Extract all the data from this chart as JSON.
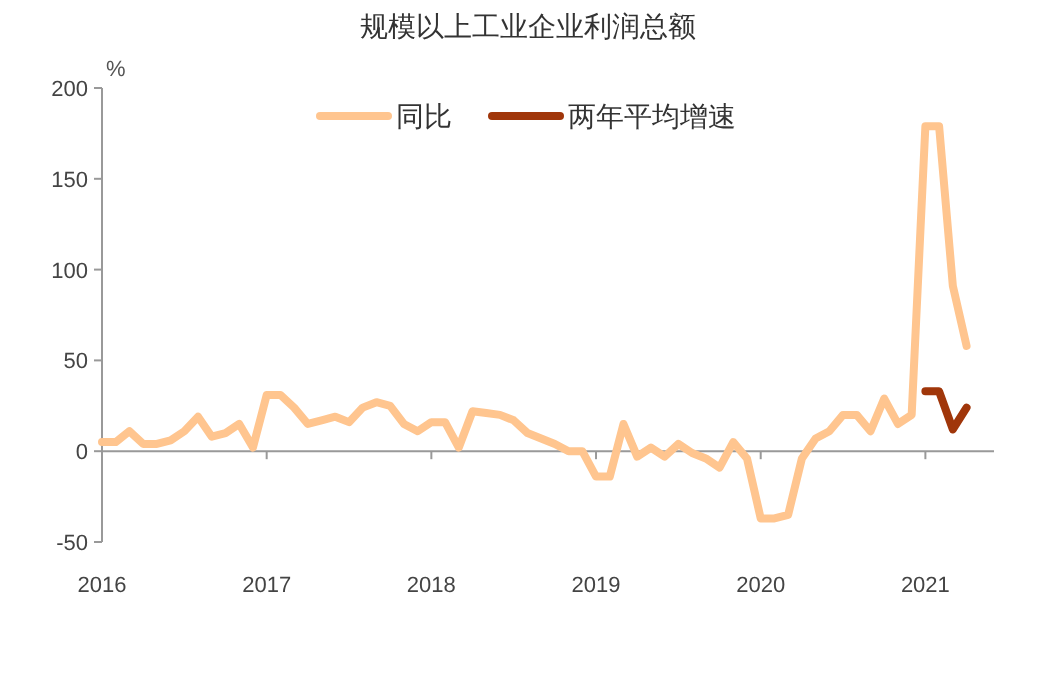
{
  "chart_data": {
    "type": "line",
    "title": "规模以上工业企业利润总额",
    "ylabel": "%",
    "xlim": [
      "2016",
      "2021-06"
    ],
    "xticks": [
      "2016",
      "2017",
      "2018",
      "2019",
      "2020",
      "2021"
    ],
    "ylim": [
      -50,
      200
    ],
    "yticks": [
      -50,
      0,
      50,
      100,
      150,
      200
    ],
    "legend": "top",
    "marker": "none",
    "line_style": "solid",
    "series": [
      {
        "name": "同比",
        "color": "#ffc58f",
        "x": [
          "2016-01",
          "2016-02",
          "2016-03",
          "2016-04",
          "2016-05",
          "2016-06",
          "2016-07",
          "2016-08",
          "2016-09",
          "2016-10",
          "2016-11",
          "2016-12",
          "2017-01",
          "2017-02",
          "2017-03",
          "2017-04",
          "2017-05",
          "2017-06",
          "2017-07",
          "2017-08",
          "2017-09",
          "2017-10",
          "2017-11",
          "2017-12",
          "2018-01",
          "2018-02",
          "2018-03",
          "2018-04",
          "2018-05",
          "2018-06",
          "2018-07",
          "2018-08",
          "2018-09",
          "2018-10",
          "2018-11",
          "2018-12",
          "2019-01",
          "2019-02",
          "2019-03",
          "2019-04",
          "2019-05",
          "2019-06",
          "2019-07",
          "2019-08",
          "2019-09",
          "2019-10",
          "2019-11",
          "2019-12",
          "2020-01",
          "2020-02",
          "2020-03",
          "2020-04",
          "2020-05",
          "2020-06",
          "2020-07",
          "2020-08",
          "2020-09",
          "2020-10",
          "2020-11",
          "2020-12",
          "2021-01",
          "2021-02",
          "2021-03",
          "2021-04"
        ],
        "values": [
          5,
          5,
          11,
          4,
          4,
          6,
          11,
          19,
          8,
          10,
          15,
          2,
          31,
          31,
          24,
          15,
          17,
          19,
          16,
          24,
          27,
          25,
          15,
          11,
          16,
          16,
          2,
          22,
          21,
          20,
          17,
          10,
          7,
          4,
          0,
          0,
          -14,
          -14,
          15,
          -3,
          2,
          -3,
          4,
          -1,
          -4,
          -9,
          5,
          -4,
          -37,
          -37,
          -35,
          -4,
          7,
          11,
          20,
          20,
          11,
          29,
          15,
          20,
          179,
          179,
          91,
          58
        ]
      },
      {
        "name": "两年平均增速",
        "color": "#a0360a",
        "x": [
          "2021-01",
          "2021-02",
          "2021-03",
          "2021-04"
        ],
        "values": [
          33,
          33,
          12,
          24
        ]
      }
    ]
  }
}
